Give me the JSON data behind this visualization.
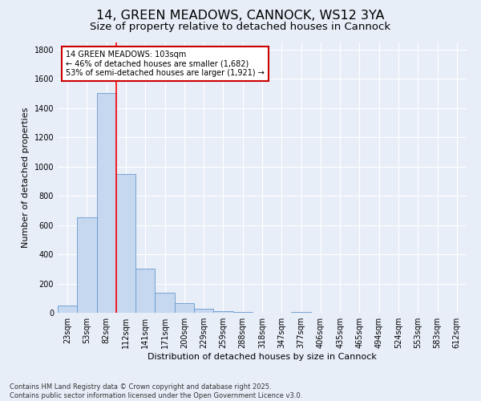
{
  "title": "14, GREEN MEADOWS, CANNOCK, WS12 3YA",
  "subtitle": "Size of property relative to detached houses in Cannock",
  "xlabel": "Distribution of detached houses by size in Cannock",
  "ylabel": "Number of detached properties",
  "bar_labels": [
    "23sqm",
    "53sqm",
    "82sqm",
    "112sqm",
    "141sqm",
    "171sqm",
    "200sqm",
    "229sqm",
    "259sqm",
    "288sqm",
    "318sqm",
    "347sqm",
    "377sqm",
    "406sqm",
    "435sqm",
    "465sqm",
    "494sqm",
    "524sqm",
    "553sqm",
    "583sqm",
    "612sqm"
  ],
  "bar_values": [
    50,
    650,
    1500,
    950,
    300,
    135,
    65,
    25,
    10,
    5,
    0,
    0,
    5,
    0,
    0,
    0,
    0,
    0,
    0,
    0,
    0
  ],
  "bar_color": "#c5d8f0",
  "bar_edge_color": "#6699cc",
  "ylim": [
    0,
    1850
  ],
  "yticks": [
    0,
    200,
    400,
    600,
    800,
    1000,
    1200,
    1400,
    1600,
    1800
  ],
  "red_line_x": 2.5,
  "annotation_text": "14 GREEN MEADOWS: 103sqm\n← 46% of detached houses are smaller (1,682)\n53% of semi-detached houses are larger (1,921) →",
  "annotation_box_color": "#ffffff",
  "annotation_box_edge": "#cc0000",
  "footer_line1": "Contains HM Land Registry data © Crown copyright and database right 2025.",
  "footer_line2": "Contains public sector information licensed under the Open Government Licence v3.0.",
  "bg_color": "#e8eef8",
  "grid_color": "#ffffff",
  "title_fontsize": 11.5,
  "subtitle_fontsize": 9.5,
  "axis_label_fontsize": 8,
  "tick_fontsize": 7,
  "footer_fontsize": 6,
  "annotation_fontsize": 7
}
